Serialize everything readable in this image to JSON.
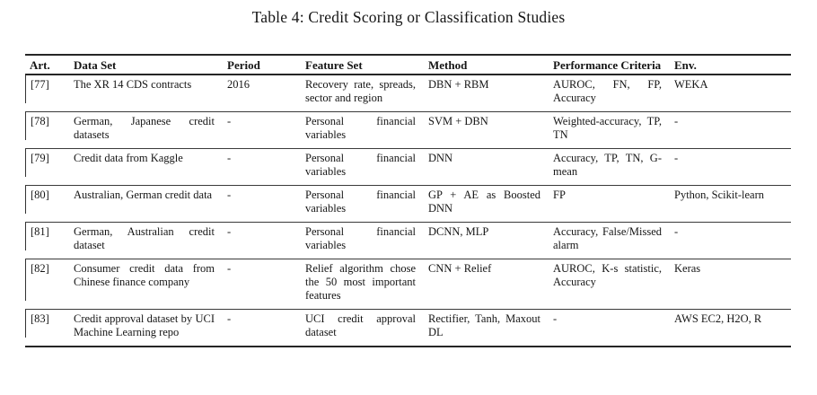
{
  "title": "Table 4: Credit Scoring or Classification Studies",
  "colors": {
    "link_blue": "#2424cc",
    "text_black": "#151515",
    "rule": "#262626"
  },
  "table": {
    "columns": [
      {
        "key": "art",
        "label": "Art."
      },
      {
        "key": "dataset",
        "label": "Data Set"
      },
      {
        "key": "period",
        "label": "Period"
      },
      {
        "key": "feature",
        "label": "Feature Set"
      },
      {
        "key": "method",
        "label": "Method"
      },
      {
        "key": "performance",
        "label": "Performance Criteria"
      },
      {
        "key": "env",
        "label": "Env."
      }
    ],
    "rows": [
      {
        "art": [
          {
            "t": "[77]",
            "c": "blue"
          }
        ],
        "dataset": [
          {
            "t": "The XR 14 ",
            "c": "black"
          },
          {
            "t": "CDS",
            "c": "blue"
          },
          {
            "t": " contracts",
            "c": "black"
          }
        ],
        "period": [
          {
            "t": "2016",
            "c": "black"
          }
        ],
        "feature": [
          {
            "t": "Recovery rate, spreads, sector and region",
            "c": "black"
          }
        ],
        "method": [
          {
            "t": "DBN + RBM",
            "c": "blue"
          }
        ],
        "performance": [
          {
            "t": "AUROC",
            "c": "blue"
          },
          {
            "t": ", ",
            "c": "black"
          },
          {
            "t": "FN",
            "c": "blue"
          },
          {
            "t": ", ",
            "c": "black"
          },
          {
            "t": "FP",
            "c": "blue"
          },
          {
            "t": ", Accuracy",
            "c": "black"
          }
        ],
        "env": [
          {
            "t": "WEKA",
            "c": "black"
          }
        ]
      },
      {
        "art": [
          {
            "t": "[78]",
            "c": "blue"
          }
        ],
        "dataset": [
          {
            "t": "German, Japanese credit datasets",
            "c": "black"
          }
        ],
        "period": [
          {
            "t": "-",
            "c": "black"
          }
        ],
        "feature": [
          {
            "t": "Personal financial variables",
            "c": "black"
          }
        ],
        "method": [
          {
            "t": "SVM",
            "c": "blue"
          },
          {
            "t": " + ",
            "c": "black"
          },
          {
            "t": "DBN",
            "c": "blue"
          }
        ],
        "performance": [
          {
            "t": "Weighted-accuracy, ",
            "c": "black"
          },
          {
            "t": "TP",
            "c": "blue"
          },
          {
            "t": ", ",
            "c": "black"
          },
          {
            "t": "TN",
            "c": "blue"
          }
        ],
        "env": [
          {
            "t": "-",
            "c": "black"
          }
        ]
      },
      {
        "art": [
          {
            "t": "[79]",
            "c": "blue"
          }
        ],
        "dataset": [
          {
            "t": "Credit data from Kaggle",
            "c": "black"
          }
        ],
        "period": [
          {
            "t": "-",
            "c": "black"
          }
        ],
        "feature": [
          {
            "t": "Personal financial variables",
            "c": "black"
          }
        ],
        "method": [
          {
            "t": "DNN",
            "c": "blue"
          }
        ],
        "performance": [
          {
            "t": "Accuracy, ",
            "c": "black"
          },
          {
            "t": "TP",
            "c": "blue"
          },
          {
            "t": ", ",
            "c": "black"
          },
          {
            "t": "TN",
            "c": "blue"
          },
          {
            "t": ", G-mean",
            "c": "black"
          }
        ],
        "env": [
          {
            "t": "-",
            "c": "black"
          }
        ]
      },
      {
        "art": [
          {
            "t": "[80]",
            "c": "blue"
          }
        ],
        "dataset": [
          {
            "t": "Australian, German credit data",
            "c": "black"
          }
        ],
        "period": [
          {
            "t": "-",
            "c": "black"
          }
        ],
        "feature": [
          {
            "t": "Personal financial variables",
            "c": "black"
          }
        ],
        "method": [
          {
            "t": "GP",
            "c": "blue"
          },
          {
            "t": " + ",
            "c": "black"
          },
          {
            "t": "AE",
            "c": "blue"
          },
          {
            "t": " as Boosted ",
            "c": "black"
          },
          {
            "t": "DNN",
            "c": "blue"
          }
        ],
        "performance": [
          {
            "t": "FP",
            "c": "blue"
          }
        ],
        "env": [
          {
            "t": "Python, Scikit-learn",
            "c": "black"
          }
        ]
      },
      {
        "art": [
          {
            "t": "[81]",
            "c": "blue"
          }
        ],
        "dataset": [
          {
            "t": "German, Australian credit dataset",
            "c": "black"
          }
        ],
        "period": [
          {
            "t": "-",
            "c": "black"
          }
        ],
        "feature": [
          {
            "t": "Personal financial variables",
            "c": "black"
          }
        ],
        "method": [
          {
            "t": "DCNN",
            "c": "blue"
          },
          {
            "t": ", ",
            "c": "black"
          },
          {
            "t": "MLP",
            "c": "blue"
          }
        ],
        "performance": [
          {
            "t": "Accuracy, False/Missed alarm",
            "c": "black"
          }
        ],
        "env": [
          {
            "t": "-",
            "c": "black"
          }
        ]
      },
      {
        "art": [
          {
            "t": "[82]",
            "c": "blue"
          }
        ],
        "dataset": [
          {
            "t": "Consumer credit data from Chinese finance company",
            "c": "black"
          }
        ],
        "period": [
          {
            "t": "-",
            "c": "black"
          }
        ],
        "feature": [
          {
            "t": "Relief algorithm chose the 50 most important features",
            "c": "black"
          }
        ],
        "method": [
          {
            "t": "CNN",
            "c": "blue"
          },
          {
            "t": " + Relief",
            "c": "black"
          }
        ],
        "performance": [
          {
            "t": "AUROC",
            "c": "blue"
          },
          {
            "t": ", K-s statistic, Accuracy",
            "c": "black"
          }
        ],
        "env": [
          {
            "t": "Keras",
            "c": "black"
          }
        ]
      },
      {
        "art": [
          {
            "t": "[83]",
            "c": "blue"
          }
        ],
        "dataset": [
          {
            "t": "Credit approval dataset by UCI Machine Learning repo",
            "c": "black"
          }
        ],
        "period": [
          {
            "t": "-",
            "c": "black"
          }
        ],
        "feature": [
          {
            "t": "UCI credit approval dataset",
            "c": "black"
          }
        ],
        "method": [
          {
            "t": "Rectifier, Tanh, Maxout ",
            "c": "black"
          },
          {
            "t": "DL",
            "c": "blue"
          }
        ],
        "performance": [
          {
            "t": "-",
            "c": "black"
          }
        ],
        "env": [
          {
            "t": "AWS EC2, H2O, R",
            "c": "black"
          }
        ]
      }
    ]
  }
}
